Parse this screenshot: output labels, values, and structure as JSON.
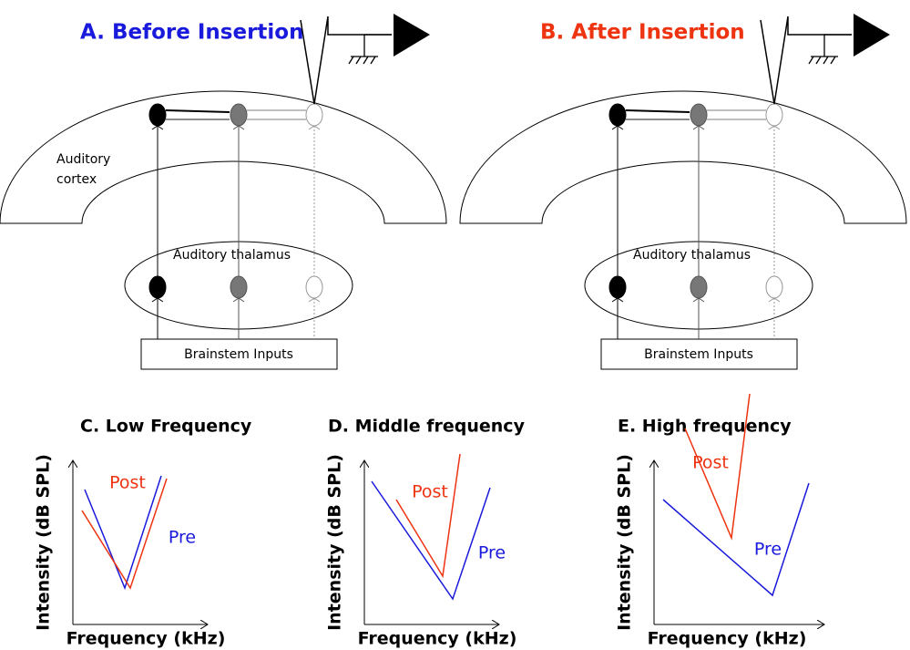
{
  "panels": [
    {
      "title": "A. Before Insertion",
      "cortex_label": [
        "Auditory",
        "cortex"
      ],
      "thalamus_label": "Auditory thalamus",
      "brainstem_label": "Brainstem  Inputs"
    },
    {
      "title": "B. After Insertion",
      "thalamus_label": "Auditory thalamus",
      "brainstem_label": "Brainstem  Inputs"
    }
  ],
  "graphs": [
    {
      "title": "C. Low Frequency",
      "y_label": "Intensity (dB SPL)",
      "x_label": "Frequency (kHz)",
      "post_label": "Post",
      "pre_label": "Pre"
    },
    {
      "title": "D. Middle frequency",
      "y_label": "Intensity (dB SPL)",
      "x_label": "Frequency (kHz)",
      "post_label": "Post",
      "pre_label": "Pre"
    },
    {
      "title": "E. High frequency",
      "y_label": "Intensity (dB SPL)",
      "x_label": "Frequency (kHz)",
      "post_label": "Post",
      "pre_label": "Pre"
    }
  ]
}
